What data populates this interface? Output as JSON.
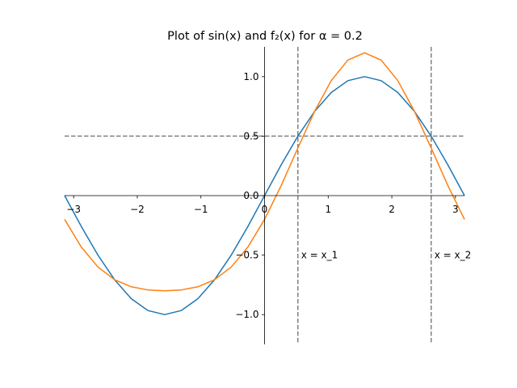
{
  "chart_data": {
    "type": "line",
    "title": "Plot of sin(x) and f₂(x) for α = 0.2",
    "x": [
      -3.1416,
      -2.8798,
      -2.618,
      -2.3562,
      -2.0944,
      -1.8326,
      -1.5708,
      -1.309,
      -1.0472,
      -0.7854,
      -0.5236,
      -0.2618,
      0,
      0.2618,
      0.5236,
      0.7854,
      1.0472,
      1.309,
      1.5708,
      1.8326,
      2.0944,
      2.3562,
      2.618,
      2.8798,
      3.1416
    ],
    "series": [
      {
        "color": "#1f77b4",
        "values": [
          0,
          -0.2588,
          -0.5,
          -0.7071,
          -0.866,
          -0.9659,
          -1,
          -0.9659,
          -0.866,
          -0.7071,
          -0.5,
          -0.2588,
          0,
          0.2588,
          0.5,
          0.7071,
          0.866,
          0.9659,
          1,
          0.9659,
          0.866,
          0.7071,
          0.5,
          0.2588,
          0
        ]
      },
      {
        "color": "#ff7f0e",
        "values": [
          -0.2,
          -0.432,
          -0.6,
          -0.7071,
          -0.766,
          -0.7927,
          -0.8,
          -0.7927,
          -0.766,
          -0.7071,
          -0.6,
          -0.432,
          -0.2,
          0.0856,
          0.4,
          0.7071,
          0.966,
          1.1391,
          1.2,
          1.1391,
          0.966,
          0.7071,
          0.4,
          0.0856,
          -0.2
        ]
      }
    ],
    "hlines": [
      {
        "y": 0.5,
        "color": "#808080"
      }
    ],
    "vlines": [
      {
        "x": 0.5236,
        "color": "#808080",
        "label": "x = x_1",
        "label_y": -0.5
      },
      {
        "x": 2.618,
        "color": "#808080",
        "label": "x = x_2",
        "label_y": -0.5
      }
    ],
    "xlim": [
      -3.1416,
      3.1416
    ],
    "ylim": [
      -1.25,
      1.25
    ],
    "xticks": [
      {
        "value": -3,
        "label": "−3"
      },
      {
        "value": -2,
        "label": "−2"
      },
      {
        "value": -1,
        "label": "−1"
      },
      0,
      1,
      2,
      3
    ],
    "yticks": [
      {
        "value": -1,
        "label": "−1.0"
      },
      {
        "value": -0.5,
        "label": "−0.5"
      },
      {
        "value": 0,
        "label": "0.0"
      },
      0.5,
      {
        "value": 1,
        "label": "1.0"
      }
    ]
  }
}
